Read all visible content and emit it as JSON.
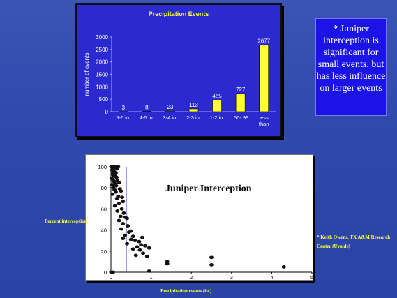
{
  "slide": {
    "note_text": "* Juniper interception is significant for small events, but has less influence on larger events",
    "y_label": "Percent interception",
    "x_label": "Precipitation events (in.)",
    "credit": "* Keith Owens, TX A&M Research Center (Uvalde)"
  },
  "colors": {
    "background": "#2f49ad",
    "bar_fill": "#ffff33",
    "label_text": "#ffff33",
    "chart_panel": "#2a2ad0",
    "note_box": "#1c14e6"
  },
  "chart_data": [
    {
      "type": "bar",
      "title": "Precipitation Events",
      "ylabel": "number of events",
      "xlabel": "",
      "categories": [
        "5-6 in.",
        "4-5 in.",
        "3-4 in.",
        "2-3 in.",
        "1-2 in.",
        ".50-.99",
        "less than"
      ],
      "values": [
        3,
        8,
        23,
        113,
        465,
        727,
        2677
      ],
      "data_labels": [
        "3",
        "8",
        "23",
        "113",
        "465",
        "727",
        "2677"
      ],
      "ylim": [
        0,
        3000
      ],
      "yticks": [
        0,
        500,
        1000,
        1500,
        2000,
        2500,
        3000
      ],
      "grid": false,
      "legend": "none"
    },
    {
      "type": "scatter",
      "title": "Juniper Interception",
      "xlim": [
        0,
        5
      ],
      "ylim": [
        0,
        100
      ],
      "xticks": [
        0,
        1,
        2,
        3,
        4,
        5
      ],
      "yticks": [
        0,
        20,
        40,
        60,
        80,
        100
      ],
      "reference_line_x": 0.38,
      "points": [
        [
          0.02,
          100
        ],
        [
          0.05,
          100
        ],
        [
          0.08,
          100
        ],
        [
          0.1,
          99
        ],
        [
          0.13,
          100
        ],
        [
          0.15,
          98
        ],
        [
          0.18,
          100
        ],
        [
          0.03,
          97
        ],
        [
          0.06,
          96
        ],
        [
          0.09,
          95
        ],
        [
          0.12,
          94
        ],
        [
          0.04,
          93
        ],
        [
          0.07,
          92
        ],
        [
          0.11,
          91
        ],
        [
          0.14,
          90
        ],
        [
          0.02,
          89
        ],
        [
          0.05,
          88
        ],
        [
          0.16,
          87
        ],
        [
          0.08,
          86
        ],
        [
          0.2,
          85
        ],
        [
          0.1,
          84
        ],
        [
          0.03,
          83
        ],
        [
          0.13,
          82
        ],
        [
          0.06,
          80
        ],
        [
          0.22,
          79
        ],
        [
          0.09,
          78
        ],
        [
          0.25,
          77
        ],
        [
          0.12,
          76
        ],
        [
          0.04,
          74
        ],
        [
          0.18,
          72
        ],
        [
          0.28,
          71
        ],
        [
          0.15,
          70
        ],
        [
          0.3,
          67
        ],
        [
          0.2,
          65
        ],
        [
          0.1,
          63
        ],
        [
          0.27,
          60
        ],
        [
          0.16,
          58
        ],
        [
          0.32,
          56
        ],
        [
          0.24,
          53
        ],
        [
          0.36,
          52
        ],
        [
          0.4,
          51
        ],
        [
          0.2,
          49
        ],
        [
          0.3,
          46
        ],
        [
          0.42,
          44
        ],
        [
          0.26,
          41
        ],
        [
          0.5,
          39
        ],
        [
          0.45,
          38
        ],
        [
          0.35,
          35
        ],
        [
          0.55,
          34
        ],
        [
          0.3,
          32
        ],
        [
          0.6,
          30
        ],
        [
          0.7,
          29
        ],
        [
          0.4,
          27
        ],
        [
          0.75,
          26
        ],
        [
          0.65,
          24
        ],
        [
          0.85,
          25
        ],
        [
          0.55,
          22
        ],
        [
          0.95,
          23
        ],
        [
          0.72,
          21
        ],
        [
          0.8,
          18
        ],
        [
          0.62,
          16
        ],
        [
          0.9,
          15
        ],
        [
          0.5,
          31
        ],
        [
          0.78,
          33
        ],
        [
          0.05,
          0
        ],
        [
          0.95,
          1
        ],
        [
          1.4,
          10
        ],
        [
          1.4,
          8
        ],
        [
          2.5,
          14
        ],
        [
          2.5,
          7
        ],
        [
          4.3,
          5
        ],
        [
          0.02,
          0
        ]
      ]
    }
  ]
}
